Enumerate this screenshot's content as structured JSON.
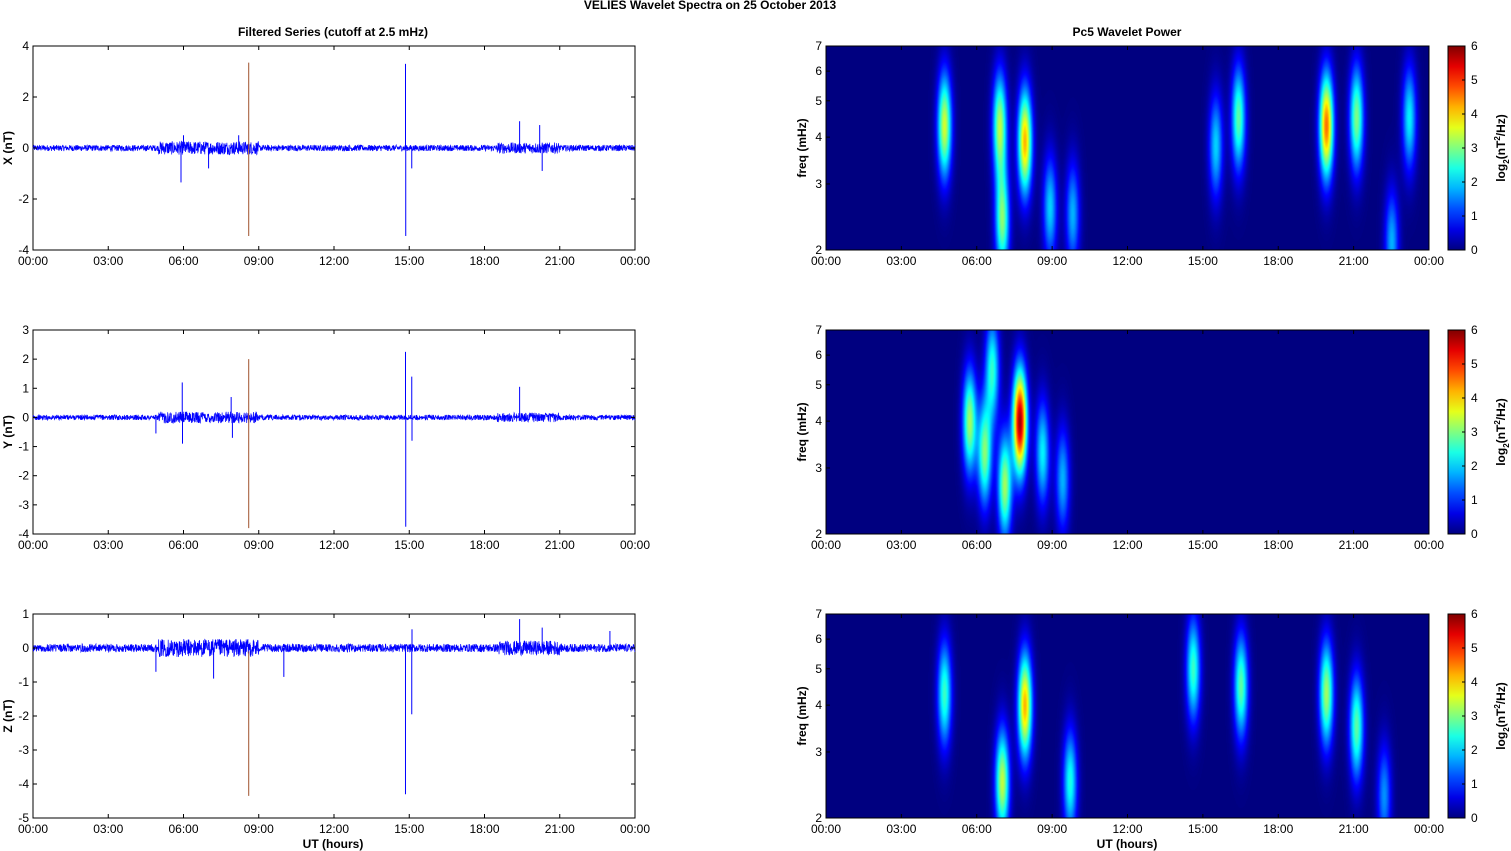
{
  "figure": {
    "suptitle": "VELIES Wavelet Spectra on 25 October   2013"
  },
  "chart_data": [
    {
      "type": "line",
      "panel": "X",
      "title": "Filtered Series (cutoff at 2.5 mHz)",
      "xlabel": "",
      "ylabel": "X (nT)",
      "x_ticks": [
        "00:00",
        "03:00",
        "06:00",
        "09:00",
        "12:00",
        "15:00",
        "18:00",
        "21:00",
        "00:00"
      ],
      "xlim_hours": [
        0,
        24
      ],
      "ylim": [
        -4,
        4
      ],
      "y_ticks": [
        -4,
        -2,
        0,
        2,
        4
      ],
      "series_color": "#0000ff",
      "noise_amplitude": 0.12,
      "spikes": [
        {
          "t": 5.9,
          "v": -1.35
        },
        {
          "t": 6.0,
          "v": 0.5
        },
        {
          "t": 7.0,
          "v": -0.8
        },
        {
          "t": 8.2,
          "v": 0.5
        },
        {
          "t": 14.85,
          "v": 3.3
        },
        {
          "t": 14.86,
          "v": -3.45
        },
        {
          "t": 15.1,
          "v": -0.8
        },
        {
          "t": 19.4,
          "v": 1.05
        },
        {
          "t": 20.2,
          "v": 0.9
        },
        {
          "t": 20.3,
          "v": -0.9
        }
      ],
      "marker_lines": [
        {
          "t": 8.6,
          "ymin": -3.45,
          "ymax": 3.35,
          "color": "#a0522d"
        }
      ]
    },
    {
      "type": "line",
      "panel": "Y",
      "title": "",
      "xlabel": "",
      "ylabel": "Y (nT)",
      "x_ticks": [
        "00:00",
        "03:00",
        "06:00",
        "09:00",
        "12:00",
        "15:00",
        "18:00",
        "21:00",
        "00:00"
      ],
      "xlim_hours": [
        0,
        24
      ],
      "ylim": [
        -4,
        3
      ],
      "y_ticks": [
        -4,
        -3,
        -2,
        -1,
        0,
        1,
        2,
        3
      ],
      "series_color": "#0000ff",
      "noise_amplitude": 0.09,
      "spikes": [
        {
          "t": 5.95,
          "v": 1.2
        },
        {
          "t": 5.96,
          "v": -0.9
        },
        {
          "t": 4.9,
          "v": -0.55
        },
        {
          "t": 7.9,
          "v": 0.7
        },
        {
          "t": 7.95,
          "v": -0.7
        },
        {
          "t": 14.85,
          "v": 2.25
        },
        {
          "t": 14.86,
          "v": -3.75
        },
        {
          "t": 15.1,
          "v": 1.4
        },
        {
          "t": 15.11,
          "v": -0.8
        },
        {
          "t": 19.4,
          "v": 1.05
        }
      ],
      "marker_lines": [
        {
          "t": 8.6,
          "ymin": -3.8,
          "ymax": 2.0,
          "color": "#a0522d"
        }
      ]
    },
    {
      "type": "line",
      "panel": "Z",
      "title": "",
      "xlabel": "UT (hours)",
      "ylabel": "Z (nT)",
      "x_ticks": [
        "00:00",
        "03:00",
        "06:00",
        "09:00",
        "12:00",
        "15:00",
        "18:00",
        "21:00",
        "00:00"
      ],
      "xlim_hours": [
        0,
        24
      ],
      "ylim": [
        -5,
        1
      ],
      "y_ticks": [
        -5,
        -4,
        -3,
        -2,
        -1,
        0,
        1
      ],
      "series_color": "#0000ff",
      "noise_amplitude": 0.12,
      "spikes": [
        {
          "t": 4.9,
          "v": -0.7
        },
        {
          "t": 7.2,
          "v": -0.9
        },
        {
          "t": 10.0,
          "v": -0.85
        },
        {
          "t": 14.85,
          "v": -4.3
        },
        {
          "t": 15.1,
          "v": -1.95
        },
        {
          "t": 15.11,
          "v": 0.55
        },
        {
          "t": 19.4,
          "v": 0.85
        },
        {
          "t": 20.3,
          "v": 0.6
        },
        {
          "t": 23.0,
          "v": 0.5
        }
      ],
      "marker_lines": [
        {
          "t": 8.6,
          "ymin": -4.35,
          "ymax": -0.1,
          "color": "#a0522d"
        }
      ]
    },
    {
      "type": "heatmap",
      "panel": "X",
      "title": "Pc5 Wavelet Power",
      "xlabel": "",
      "ylabel": "freq (mHz)",
      "x_ticks": [
        "00:00",
        "03:00",
        "06:00",
        "09:00",
        "12:00",
        "15:00",
        "18:00",
        "21:00",
        "00:00"
      ],
      "xlim_hours": [
        0,
        24
      ],
      "ylim_mHz": [
        2,
        7
      ],
      "y_scale": "log",
      "y_ticks": [
        2,
        3,
        4,
        5,
        6,
        7
      ],
      "colorbar": {
        "label": "log2(nT^2/Hz)",
        "ticks": [
          0,
          1,
          2,
          3,
          4,
          5,
          6
        ],
        "colormap": "jet",
        "range": [
          0,
          6
        ]
      },
      "blobs": [
        {
          "t": 4.7,
          "f": 4.3,
          "p": 3.5
        },
        {
          "t": 6.9,
          "f": 4.3,
          "p": 3.3
        },
        {
          "t": 7.0,
          "f": 2.4,
          "p": 3.0
        },
        {
          "t": 7.9,
          "f": 3.9,
          "p": 4.2
        },
        {
          "t": 8.9,
          "f": 2.6,
          "p": 2.0
        },
        {
          "t": 9.8,
          "f": 2.5,
          "p": 1.8
        },
        {
          "t": 15.5,
          "f": 3.8,
          "p": 2.0
        },
        {
          "t": 16.4,
          "f": 4.5,
          "p": 2.8
        },
        {
          "t": 19.9,
          "f": 4.3,
          "p": 4.6
        },
        {
          "t": 21.1,
          "f": 4.5,
          "p": 3.0
        },
        {
          "t": 22.5,
          "f": 2.1,
          "p": 1.8
        },
        {
          "t": 23.2,
          "f": 4.5,
          "p": 2.2
        }
      ]
    },
    {
      "type": "heatmap",
      "panel": "Y",
      "title": "",
      "xlabel": "",
      "ylabel": "freq (mHz)",
      "x_ticks": [
        "00:00",
        "03:00",
        "06:00",
        "09:00",
        "12:00",
        "15:00",
        "18:00",
        "21:00",
        "00:00"
      ],
      "xlim_hours": [
        0,
        24
      ],
      "ylim_mHz": [
        2,
        7
      ],
      "y_scale": "log",
      "y_ticks": [
        2,
        3,
        4,
        5,
        6,
        7
      ],
      "colorbar": {
        "label": "log2(nT^2/Hz)",
        "ticks": [
          0,
          1,
          2,
          3,
          4,
          5,
          6
        ],
        "colormap": "jet",
        "range": [
          0,
          6
        ]
      },
      "blobs": [
        {
          "t": 5.7,
          "f": 4.0,
          "p": 3.2
        },
        {
          "t": 6.3,
          "f": 3.3,
          "p": 3.0
        },
        {
          "t": 6.6,
          "f": 5.5,
          "p": 2.5
        },
        {
          "t": 7.1,
          "f": 2.7,
          "p": 3.2
        },
        {
          "t": 7.7,
          "f": 4.0,
          "p": 5.8
        },
        {
          "t": 8.6,
          "f": 3.3,
          "p": 2.2
        },
        {
          "t": 9.4,
          "f": 2.8,
          "p": 1.8
        }
      ]
    },
    {
      "type": "heatmap",
      "panel": "Z",
      "title": "",
      "xlabel": "UT (hours)",
      "ylabel": "freq (mHz)",
      "x_ticks": [
        "00:00",
        "03:00",
        "06:00",
        "09:00",
        "12:00",
        "15:00",
        "18:00",
        "21:00",
        "00:00"
      ],
      "xlim_hours": [
        0,
        24
      ],
      "ylim_mHz": [
        2,
        7
      ],
      "y_scale": "log",
      "y_ticks": [
        2,
        3,
        4,
        5,
        6,
        7
      ],
      "colorbar": {
        "label": "log2(nT^2/Hz)",
        "ticks": [
          0,
          1,
          2,
          3,
          4,
          5,
          6
        ],
        "colormap": "jet",
        "range": [
          0,
          6
        ]
      },
      "blobs": [
        {
          "t": 4.7,
          "f": 4.3,
          "p": 2.6
        },
        {
          "t": 7.0,
          "f": 2.5,
          "p": 3.4
        },
        {
          "t": 7.9,
          "f": 4.0,
          "p": 4.2
        },
        {
          "t": 9.7,
          "f": 2.5,
          "p": 2.4
        },
        {
          "t": 14.6,
          "f": 5.0,
          "p": 2.6
        },
        {
          "t": 16.5,
          "f": 4.5,
          "p": 2.8
        },
        {
          "t": 19.9,
          "f": 4.3,
          "p": 3.2
        },
        {
          "t": 21.1,
          "f": 3.5,
          "p": 2.8
        },
        {
          "t": 22.2,
          "f": 2.3,
          "p": 1.6
        }
      ]
    }
  ]
}
